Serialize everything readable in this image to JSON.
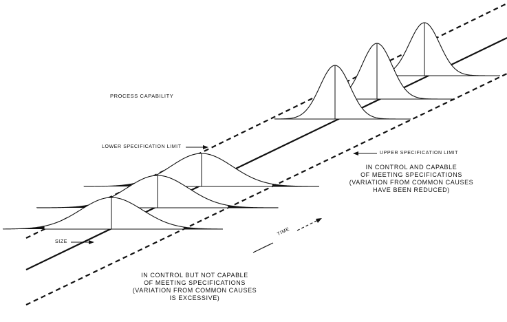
{
  "title": "PROCESS CAPABILITY",
  "labels": {
    "lower_spec": "LOWER SPECIFICATION LIMIT",
    "upper_spec": "UPPER SPECIFICATION LIMIT",
    "size": "SIZE",
    "time": "TIME"
  },
  "capable_note": [
    "IN CONTROL AND CAPABLE",
    "OF MEETING SPECIFICATIONS",
    "(VARIATION FROM COMMON CAUSES",
    "HAVE BEEN REDUCED)"
  ],
  "not_capable_note": [
    "IN CONTROL BUT NOT CAPABLE",
    "OF MEETING SPECIFICATIONS",
    "(VARIATION FROM COMMON CAUSES",
    "IS EXCESSIVE)"
  ],
  "colors": {
    "ink": "#111111",
    "background": "#ffffff"
  }
}
